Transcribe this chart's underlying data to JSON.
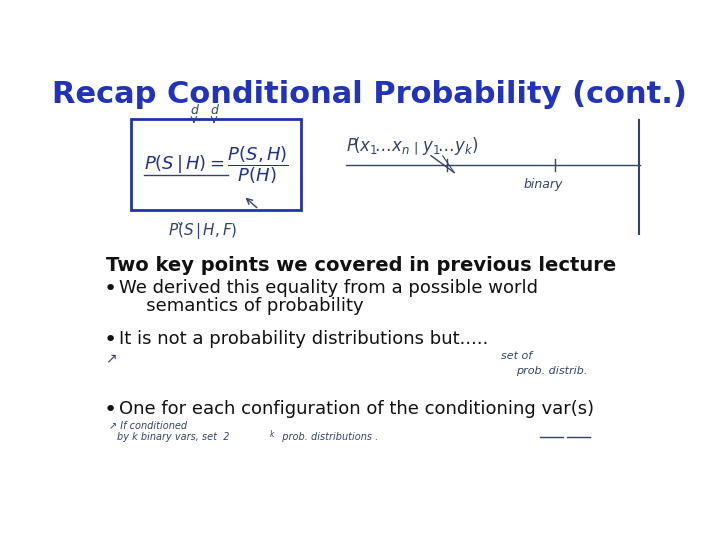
{
  "title": "Recap Conditional Probability (cont.)",
  "title_color": "#2233bb",
  "title_fontsize": 22,
  "title_fontweight": "bold",
  "bg_color": "#ffffff",
  "subtitle": "Two key points we covered in previous lecture",
  "subtitle_fontsize": 14,
  "subtitle_fontweight": "bold",
  "subtitle_color": "#111111",
  "bullet1_line1": "We derived this equality from a possible world",
  "bullet1_line2": "   semantics of probability",
  "bullet2": "It is not a probability distributions but.....",
  "bullet3": "One for each configuration of the conditioning var(s)",
  "bullet_fontsize": 13,
  "bullet_color": "#111111",
  "formula_color": "#223388",
  "handwrite_color": "#334466"
}
